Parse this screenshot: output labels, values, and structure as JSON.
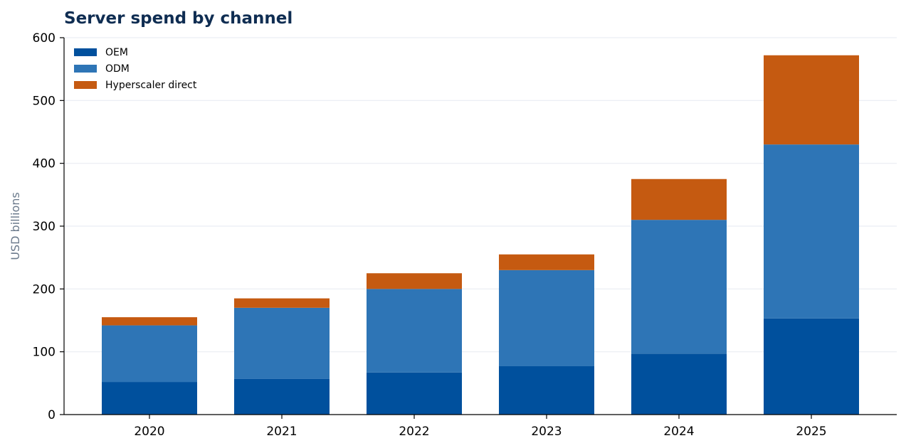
{
  "chart_data": {
    "type": "bar",
    "stacked": true,
    "title": "Server spend by channel",
    "xlabel": "",
    "ylabel": "USD billions",
    "categories": [
      "2020",
      "2021",
      "2022",
      "2023",
      "2024",
      "2025"
    ],
    "series": [
      {
        "name": "OEM",
        "color": "#00509d",
        "values": [
          52,
          57,
          67,
          77,
          97,
          153
        ]
      },
      {
        "name": "ODM",
        "color": "#2e75b6",
        "values": [
          90,
          113,
          133,
          153,
          213,
          277
        ]
      },
      {
        "name": "Hyperscaler direct",
        "color": "#c55a11",
        "values": [
          13,
          15,
          25,
          25,
          65,
          142
        ]
      }
    ],
    "ylim": [
      0,
      600
    ],
    "yticks": [
      "0",
      "100",
      "200",
      "300",
      "400",
      "500",
      "600"
    ],
    "grid": true,
    "legend_position": "top-left"
  }
}
